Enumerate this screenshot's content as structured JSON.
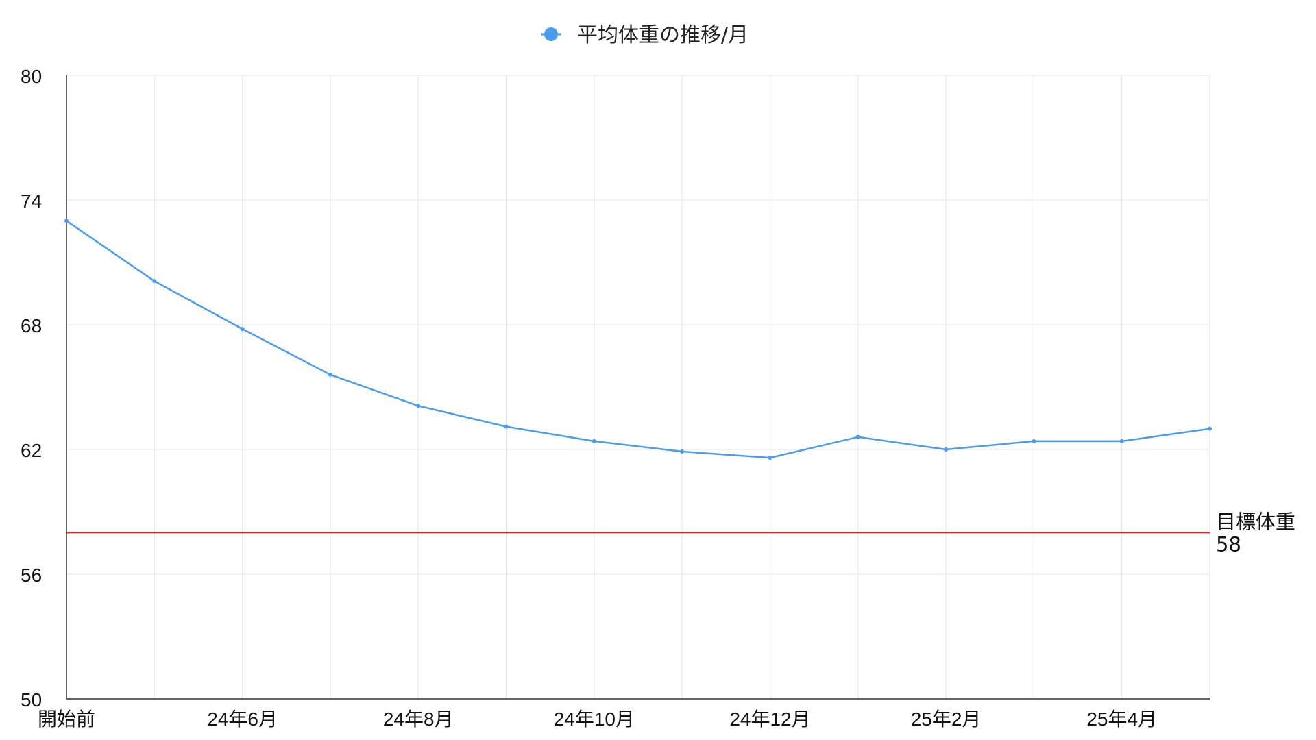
{
  "chart_data": {
    "type": "line",
    "legend_position": "top-center",
    "grid": true,
    "x_labels": [
      "開始前",
      "",
      "24年6月",
      "",
      "24年8月",
      "",
      "24年10月",
      "",
      "24年12月",
      "",
      "25年2月",
      "",
      "25年4月",
      ""
    ],
    "series": [
      {
        "name": "平均体重の推移/月",
        "color": "#4a9ded",
        "values": [
          73.0,
          70.1,
          67.8,
          65.6,
          64.1,
          63.1,
          62.4,
          61.9,
          61.6,
          62.6,
          62.0,
          62.4,
          62.4,
          63.0
        ]
      }
    ],
    "y_ticks": [
      "80",
      "74",
      "68",
      "62",
      "56",
      "50"
    ],
    "ylim": [
      50,
      80
    ],
    "reference_line": {
      "label": "目標体重",
      "value_label": "58",
      "value": 58,
      "color": "#d9251d"
    }
  }
}
